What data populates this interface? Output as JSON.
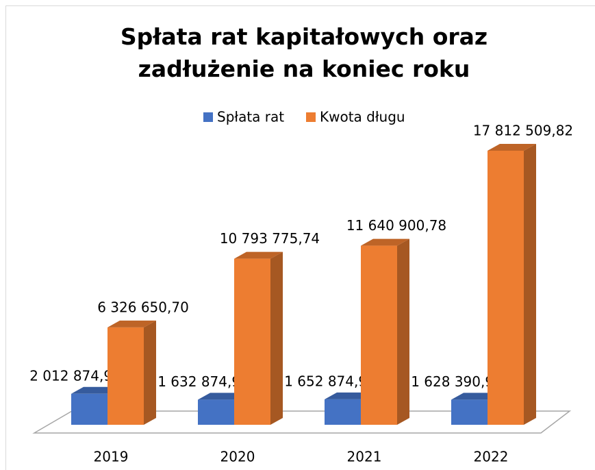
{
  "chart_data": {
    "type": "bar3d",
    "title": "Spłata rat kapitałowych oraz zadłużenie na koniec roku",
    "categories": [
      "2019",
      "2020",
      "2021",
      "2022"
    ],
    "series": [
      {
        "name": "Spłata rat",
        "color": "#4472c4",
        "values": [
          2012874.96,
          1632874.96,
          1652874.96,
          1628390.96
        ],
        "value_labels": [
          "2 012 874,96",
          "1 632 874,96",
          "1 652 874,96",
          "1 628 390,96"
        ]
      },
      {
        "name": "Kwota długu",
        "color": "#ed7d31",
        "values": [
          6326650.7,
          10793775.74,
          11640900.78,
          17812509.82
        ],
        "value_labels": [
          "6 326 650,70",
          "10 793 775,74",
          "11 640 900,78",
          "17 812 509,82"
        ]
      }
    ],
    "legend": "top"
  }
}
